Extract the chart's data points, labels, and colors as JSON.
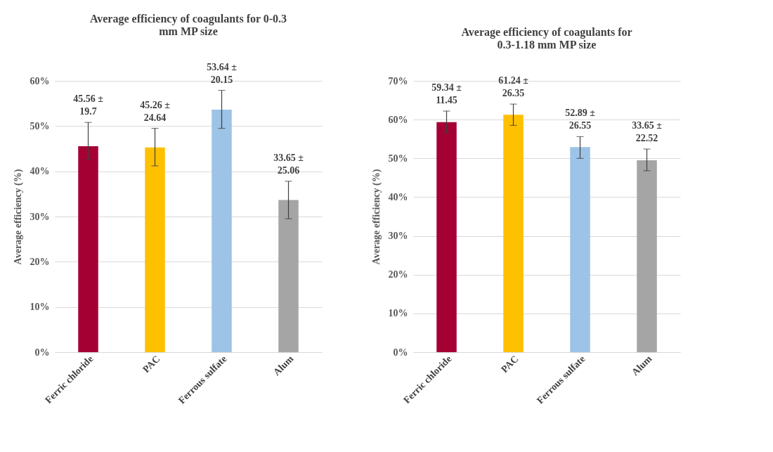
{
  "chart_data": [
    {
      "type": "bar",
      "title": "Average efficiency of coagulants for 0-0.3 mm MP size",
      "ylabel": "Average efficiency (%)",
      "categories": [
        "Ferric chloride",
        "PAC",
        "Ferrous sulfate",
        "Alum"
      ],
      "values": [
        45.56,
        45.26,
        53.64,
        33.65
      ],
      "colors": [
        "#a50034",
        "#ffc000",
        "#9dc3e6",
        "#a5a5a5"
      ],
      "errors": [
        [
          42.6,
          50.8
        ],
        [
          41.2,
          49.5
        ],
        [
          49.5,
          57.9
        ],
        [
          29.5,
          37.8
        ]
      ],
      "value_labels": [
        "45.56 ±\n19.7",
        "45.26 ±\n24.64",
        "53.64 ±\n20.15",
        "33.65 ±\n25.06"
      ],
      "ylim": [
        0,
        60
      ],
      "yticks": [
        {
          "value": 0,
          "label": "0%"
        },
        {
          "value": 10,
          "label": "10%"
        },
        {
          "value": 20,
          "label": "20%"
        },
        {
          "value": 30,
          "label": "30%"
        },
        {
          "value": 40,
          "label": "40%"
        },
        {
          "value": 50,
          "label": "50%"
        },
        {
          "value": 60,
          "label": "60%"
        }
      ],
      "grid": "y"
    },
    {
      "type": "bar",
      "title": "Average efficiency of coagulants for 0.3-1.18 mm MP size",
      "ylabel": "Average efficiency (%)",
      "categories": [
        "Ferric chloride",
        "PAC",
        "Ferrous sulfate",
        "Alum"
      ],
      "values": [
        59.34,
        61.24,
        52.89,
        49.5
      ],
      "colors": [
        "#a50034",
        "#ffc000",
        "#9dc3e6",
        "#a5a5a5"
      ],
      "errors": [
        [
          56.6,
          62.2
        ],
        [
          58.5,
          64.0
        ],
        [
          50.0,
          55.6
        ],
        [
          46.8,
          52.4
        ]
      ],
      "value_labels": [
        "59.34 ±\n11.45",
        "61.24 ±\n26.35",
        "52.89 ±\n26.55",
        null
      ],
      "annotations": [
        {
          "text": "33.65 ±\n22.52",
          "x": "Alum",
          "y": 52.4
        }
      ],
      "ylim": [
        0,
        70
      ],
      "yticks": [
        {
          "value": 0,
          "label": "0%"
        },
        {
          "value": 10,
          "label": "10%"
        },
        {
          "value": 20,
          "label": "20%"
        },
        {
          "value": 30,
          "label": "30%"
        },
        {
          "value": 40,
          "label": "40%"
        },
        {
          "value": 50,
          "label": "50%"
        },
        {
          "value": 60,
          "label": "60%"
        },
        {
          "value": 70,
          "label": "70%"
        }
      ],
      "grid": "y"
    }
  ]
}
